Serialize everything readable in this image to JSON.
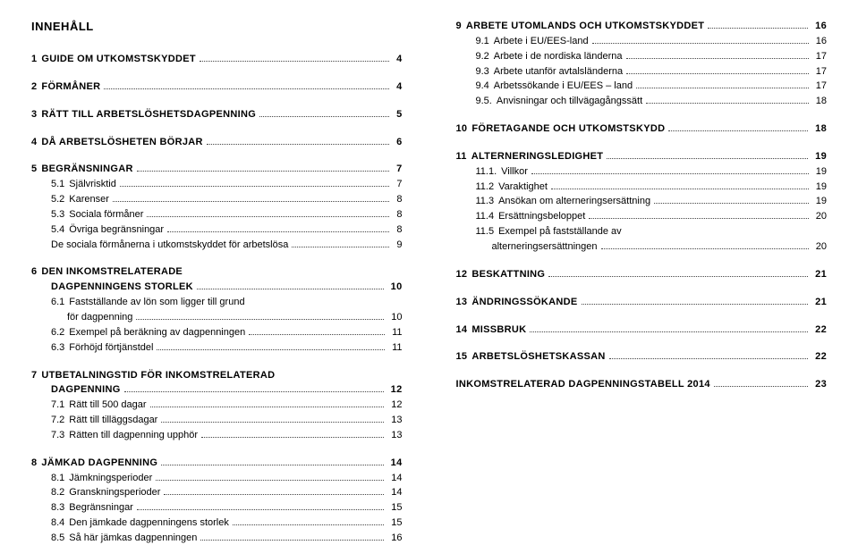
{
  "title": "INNEHÅLL",
  "title_fontsize": 13,
  "font_family": "Arial",
  "text_color": "#000000",
  "bg_color": "#ffffff",
  "dot_color": "#444444",
  "left": [
    {
      "type": "row",
      "bold": true,
      "num": "1",
      "label": "GUIDE OM UTKOMSTSKYDDET",
      "page": "4"
    },
    {
      "type": "spacer"
    },
    {
      "type": "row",
      "bold": true,
      "num": "2",
      "label": "FÖRMÅNER",
      "page": "4"
    },
    {
      "type": "spacer"
    },
    {
      "type": "row",
      "bold": true,
      "num": "3",
      "label": "RÄTT TILL ARBETSLÖSHETSDAGPENNING",
      "page": "5"
    },
    {
      "type": "spacer"
    },
    {
      "type": "row",
      "bold": true,
      "num": "4",
      "label": "DÅ ARBETSLÖSHETEN BÖRJAR",
      "page": "6"
    },
    {
      "type": "spacer"
    },
    {
      "type": "row",
      "bold": true,
      "num": "5",
      "label": "BEGRÄNSNINGAR",
      "page": "7"
    },
    {
      "type": "row",
      "indent": 1,
      "num": "5.1",
      "label": "Självrisktid",
      "page": "7"
    },
    {
      "type": "row",
      "indent": 1,
      "num": "5.2",
      "label": "Karenser",
      "page": "8"
    },
    {
      "type": "row",
      "indent": 1,
      "num": "5.3",
      "label": "Sociala förmåner",
      "page": "8"
    },
    {
      "type": "row",
      "indent": 1,
      "num": "5.4",
      "label": "Övriga begränsningar",
      "page": "8"
    },
    {
      "type": "row",
      "indent": 1,
      "num": "",
      "label": "De sociala förmånerna i utkomstskyddet för arbetslösa",
      "page": "9"
    },
    {
      "type": "spacer"
    },
    {
      "type": "row",
      "bold": true,
      "num": "6",
      "label": "DEN INKOMSTRELATERADE",
      "page": ""
    },
    {
      "type": "row",
      "bold": true,
      "indent": 1,
      "num": "",
      "label": "DAGPENNINGENS STORLEK",
      "page": "10"
    },
    {
      "type": "row",
      "indent": 1,
      "num": "6.1",
      "label": "Fastställande av lön som ligger till grund",
      "page": ""
    },
    {
      "type": "row",
      "indent": 2,
      "num": "",
      "label": "för dagpenning",
      "page": "10"
    },
    {
      "type": "row",
      "indent": 1,
      "num": "6.2",
      "label": "Exempel på beräkning av dagpenningen",
      "page": "11"
    },
    {
      "type": "row",
      "indent": 1,
      "num": "6.3",
      "label": "Förhöjd förtjänstdel",
      "page": "11"
    },
    {
      "type": "spacer"
    },
    {
      "type": "row",
      "bold": true,
      "num": "7",
      "label": "UTBETALNINGSTID FÖR INKOMSTRELATERAD",
      "page": ""
    },
    {
      "type": "row",
      "bold": true,
      "indent": 1,
      "num": "",
      "label": "DAGPENNING",
      "page": "12"
    },
    {
      "type": "row",
      "indent": 1,
      "num": "7.1",
      "label": "Rätt till 500 dagar",
      "page": "12"
    },
    {
      "type": "row",
      "indent": 1,
      "num": "7.2",
      "label": "Rätt till tilläggsdagar",
      "page": "13"
    },
    {
      "type": "row",
      "indent": 1,
      "num": "7.3",
      "label": "Rätten till dagpenning upphör",
      "page": "13"
    },
    {
      "type": "spacer"
    },
    {
      "type": "row",
      "bold": true,
      "num": "8",
      "label": "JÄMKAD DAGPENNING",
      "page": "14"
    },
    {
      "type": "row",
      "indent": 1,
      "num": "8.1",
      "label": "Jämkningsperioder",
      "page": "14"
    },
    {
      "type": "row",
      "indent": 1,
      "num": "8.2",
      "label": "Granskningsperioder",
      "page": "14"
    },
    {
      "type": "row",
      "indent": 1,
      "num": "8.3",
      "label": "Begränsningar",
      "page": "15"
    },
    {
      "type": "row",
      "indent": 1,
      "num": "8.4",
      "label": "Den jämkade dagpenningens storlek",
      "page": "15"
    },
    {
      "type": "row",
      "indent": 1,
      "num": "8.5",
      "label": "Så här jämkas dagpenningen",
      "page": "16"
    }
  ],
  "right": [
    {
      "type": "row",
      "bold": true,
      "num": "9",
      "label": "ARBETE UTOMLANDS OCH UTKOMSTSKYDDET",
      "page": "16"
    },
    {
      "type": "row",
      "indent": 1,
      "num": "9.1",
      "label": "Arbete i EU/EES-land",
      "page": "16"
    },
    {
      "type": "row",
      "indent": 1,
      "num": "9.2",
      "label": "Arbete i de nordiska länderna",
      "page": "17"
    },
    {
      "type": "row",
      "indent": 1,
      "num": "9.3",
      "label": "Arbete utanför avtalsländerna",
      "page": "17"
    },
    {
      "type": "row",
      "indent": 1,
      "num": "9.4",
      "label": "Arbetssökande i EU/EES – land",
      "page": "17"
    },
    {
      "type": "row",
      "indent": 1,
      "num": "9.5.",
      "label": "Anvisningar och tillvägagångssätt",
      "page": "18"
    },
    {
      "type": "spacer"
    },
    {
      "type": "row",
      "bold": true,
      "num": "10",
      "label": "FÖRETAGANDE OCH UTKOMSTSKYDD",
      "page": "18"
    },
    {
      "type": "spacer"
    },
    {
      "type": "row",
      "bold": true,
      "num": "11",
      "label": "ALTERNERINGSLEDIGHET",
      "page": "19"
    },
    {
      "type": "row",
      "indent": 1,
      "num": "11.1.",
      "label": "Villkor",
      "page": "19"
    },
    {
      "type": "row",
      "indent": 1,
      "num": "11.2",
      "label": "Varaktighet",
      "page": "19"
    },
    {
      "type": "row",
      "indent": 1,
      "num": "11.3",
      "label": "Ansökan om alterneringsersättning",
      "page": "19"
    },
    {
      "type": "row",
      "indent": 1,
      "num": "11.4",
      "label": "Ersättningsbeloppet",
      "page": "20"
    },
    {
      "type": "row",
      "indent": 1,
      "num": "11.5",
      "label": "Exempel på fastställande av",
      "page": ""
    },
    {
      "type": "row",
      "indent": 2,
      "num": "",
      "label": "alterneringsersättningen",
      "page": "20"
    },
    {
      "type": "spacer"
    },
    {
      "type": "row",
      "bold": true,
      "num": "12",
      "label": "BESKATTNING",
      "page": "21"
    },
    {
      "type": "spacer"
    },
    {
      "type": "row",
      "bold": true,
      "num": "13",
      "label": "ÄNDRINGSSÖKANDE",
      "page": "21"
    },
    {
      "type": "spacer"
    },
    {
      "type": "row",
      "bold": true,
      "num": "14",
      "label": "MISSBRUK",
      "page": "22"
    },
    {
      "type": "spacer"
    },
    {
      "type": "row",
      "bold": true,
      "num": "15",
      "label": "ARBETSLÖSHETSKASSAN",
      "page": "22"
    },
    {
      "type": "spacer"
    },
    {
      "type": "row",
      "bold": true,
      "num": "",
      "label": "INKOMSTRELATERAD DAGPENNINGSTABELL 2014",
      "page": "23"
    }
  ]
}
